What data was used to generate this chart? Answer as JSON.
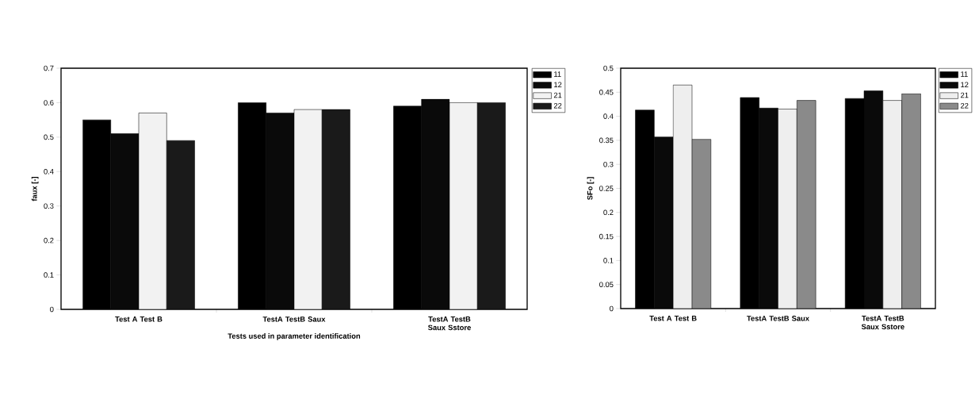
{
  "chart_data": [
    {
      "type": "bar",
      "xlabel": "Tests used in parameter identification",
      "ylabel": "faux [-]",
      "categories": [
        "Test A Test B",
        "TestA TestB Saux",
        "TestA TestB Saux Sstore"
      ],
      "series": [
        {
          "name": "11",
          "color": "#000000",
          "values": [
            0.55,
            0.6,
            0.59
          ]
        },
        {
          "name": "12",
          "color": "#0a0a0a",
          "values": [
            0.51,
            0.57,
            0.61
          ]
        },
        {
          "name": "21",
          "color": "#f2f2f2",
          "values": [
            0.57,
            0.58,
            0.6
          ]
        },
        {
          "name": "22",
          "color": "#1a1a1a",
          "values": [
            0.49,
            0.58,
            0.6
          ]
        }
      ],
      "ylim": [
        0,
        0.7
      ],
      "yticks": [
        0,
        0.1,
        0.2,
        0.3,
        0.4,
        0.5,
        0.6,
        0.7
      ],
      "legend": "top right",
      "grid": false
    },
    {
      "type": "bar",
      "ylabel": "SFo [-]",
      "categories": [
        "Test A Test B",
        "TestA TestB Saux",
        "TestA TestB Saux Sstore"
      ],
      "series": [
        {
          "name": "11",
          "color": "#000000",
          "values": [
            0.413,
            0.439,
            0.437
          ]
        },
        {
          "name": "12",
          "color": "#0a0a0a",
          "values": [
            0.357,
            0.417,
            0.453
          ]
        },
        {
          "name": "21",
          "color": "#eeeeee",
          "values": [
            0.465,
            0.415,
            0.433
          ]
        },
        {
          "name": "22",
          "color": "#8a8a8a",
          "values": [
            0.352,
            0.433,
            0.447
          ]
        }
      ],
      "ylim": [
        0,
        0.5
      ],
      "yticks": [
        0,
        0.05,
        0.1,
        0.15,
        0.2,
        0.25,
        0.3,
        0.35,
        0.4,
        0.45,
        0.5
      ],
      "legend": "top right",
      "grid": false
    }
  ]
}
